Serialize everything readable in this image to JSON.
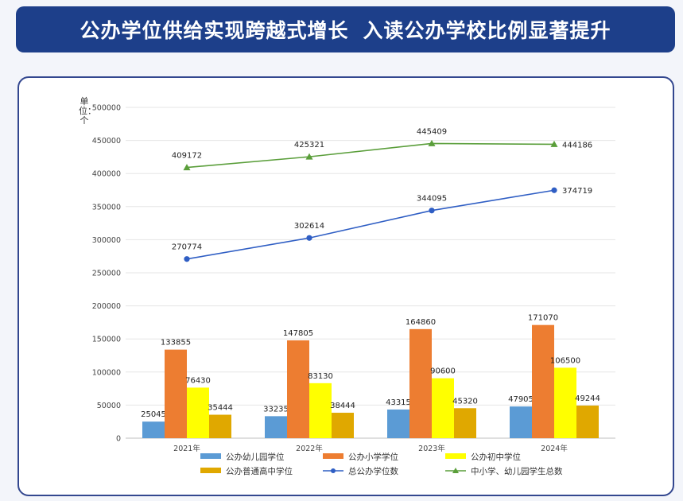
{
  "header": {
    "title_left": "公办学位供给实现跨越式增长",
    "title_right": "入读公办学校比例显著提升"
  },
  "chart_data": {
    "type": "bar",
    "title": "",
    "ylabel": "单位：个",
    "ylim": [
      0,
      500000
    ],
    "yticks": [
      0,
      50000,
      100000,
      150000,
      200000,
      250000,
      300000,
      350000,
      400000,
      450000,
      500000
    ],
    "categories": [
      "2021年",
      "2022年",
      "2023年",
      "2024年"
    ],
    "series": [
      {
        "name": "公办幼儿园学位",
        "type": "bar",
        "color": "#5b9bd5",
        "values": [
          25045,
          33235,
          43315,
          47905
        ]
      },
      {
        "name": "公办小学学位",
        "type": "bar",
        "color": "#ed7d31",
        "values": [
          133855,
          147805,
          164860,
          171070
        ]
      },
      {
        "name": "公办初中学位",
        "type": "bar",
        "color": "#ffff00",
        "values": [
          76430,
          83130,
          90600,
          106500
        ]
      },
      {
        "name": "公办普通高中学位",
        "type": "bar",
        "color": "#e0a800",
        "values": [
          35444,
          38444,
          45320,
          49244
        ]
      },
      {
        "name": "总公办学位数",
        "type": "line",
        "marker": "circle",
        "color": "#2f5ec4",
        "values": [
          270774,
          302614,
          344095,
          374719
        ]
      },
      {
        "name": "中小学、幼儿园学生总数",
        "type": "line",
        "marker": "triangle",
        "color": "#5a9e3a",
        "values": [
          409172,
          425321,
          445409,
          444186
        ]
      }
    ],
    "grid": true,
    "legend_position": "bottom"
  }
}
